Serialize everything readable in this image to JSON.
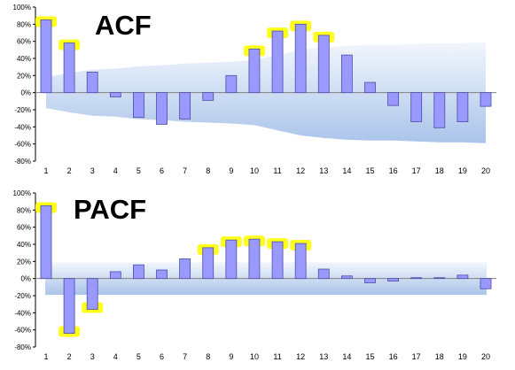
{
  "colors": {
    "bar_fill": "#9999ff",
    "bar_stroke": "#4c4ca8",
    "band_top": "#f2f6fc",
    "band_bottom": "#aac4ea",
    "highlight": "#ffff00",
    "zero_line": "#808080"
  },
  "chart_data": [
    {
      "type": "bar",
      "title": "ACF",
      "categories": [
        "1",
        "2",
        "3",
        "4",
        "5",
        "6",
        "7",
        "8",
        "9",
        "10",
        "11",
        "12",
        "13",
        "14",
        "15",
        "16",
        "17",
        "18",
        "19",
        "20"
      ],
      "values": [
        85,
        58,
        24,
        -5,
        -29,
        -37,
        -31,
        -9,
        20,
        51,
        72,
        80,
        67,
        44,
        12,
        -15,
        -34,
        -41,
        -34,
        -16
      ],
      "ylim": [
        -80,
        100
      ],
      "yticks": [
        "100%",
        "80%",
        "60%",
        "40%",
        "20%",
        "0%",
        "-20%",
        "-40%",
        "-60%",
        "-80%"
      ],
      "confidence_band": {
        "upper": [
          18,
          23,
          27,
          28,
          31,
          32,
          34,
          35,
          36,
          38,
          44,
          50,
          53,
          55,
          56,
          56,
          57,
          58,
          58,
          59
        ],
        "lower": [
          -18,
          -23,
          -27,
          -28,
          -31,
          -32,
          -34,
          -35,
          -36,
          -38,
          -44,
          -50,
          -53,
          -55,
          -56,
          -56,
          -57,
          -58,
          -58,
          -59
        ]
      },
      "highlighted_lags": [
        1,
        2,
        10,
        11,
        12,
        13
      ],
      "grid": false
    },
    {
      "type": "bar",
      "title": "PACF",
      "categories": [
        "1",
        "2",
        "3",
        "4",
        "5",
        "6",
        "7",
        "8",
        "9",
        "10",
        "11",
        "12",
        "13",
        "14",
        "15",
        "16",
        "17",
        "18",
        "19",
        "20"
      ],
      "values": [
        85,
        -64,
        -36,
        8,
        16,
        10,
        23,
        36,
        45,
        46,
        43,
        41,
        11,
        3,
        -5,
        -3,
        1,
        1,
        4,
        -12
      ],
      "ylim": [
        -80,
        100
      ],
      "yticks": [
        "100%",
        "80%",
        "60%",
        "40%",
        "20%",
        "0%",
        "-20%",
        "-40%",
        "-60%",
        "-80%"
      ],
      "confidence_band": {
        "upper": 19,
        "lower": -19
      },
      "highlighted_lags": [
        1,
        2,
        3,
        8,
        9,
        10,
        11,
        12
      ],
      "grid": false
    }
  ]
}
